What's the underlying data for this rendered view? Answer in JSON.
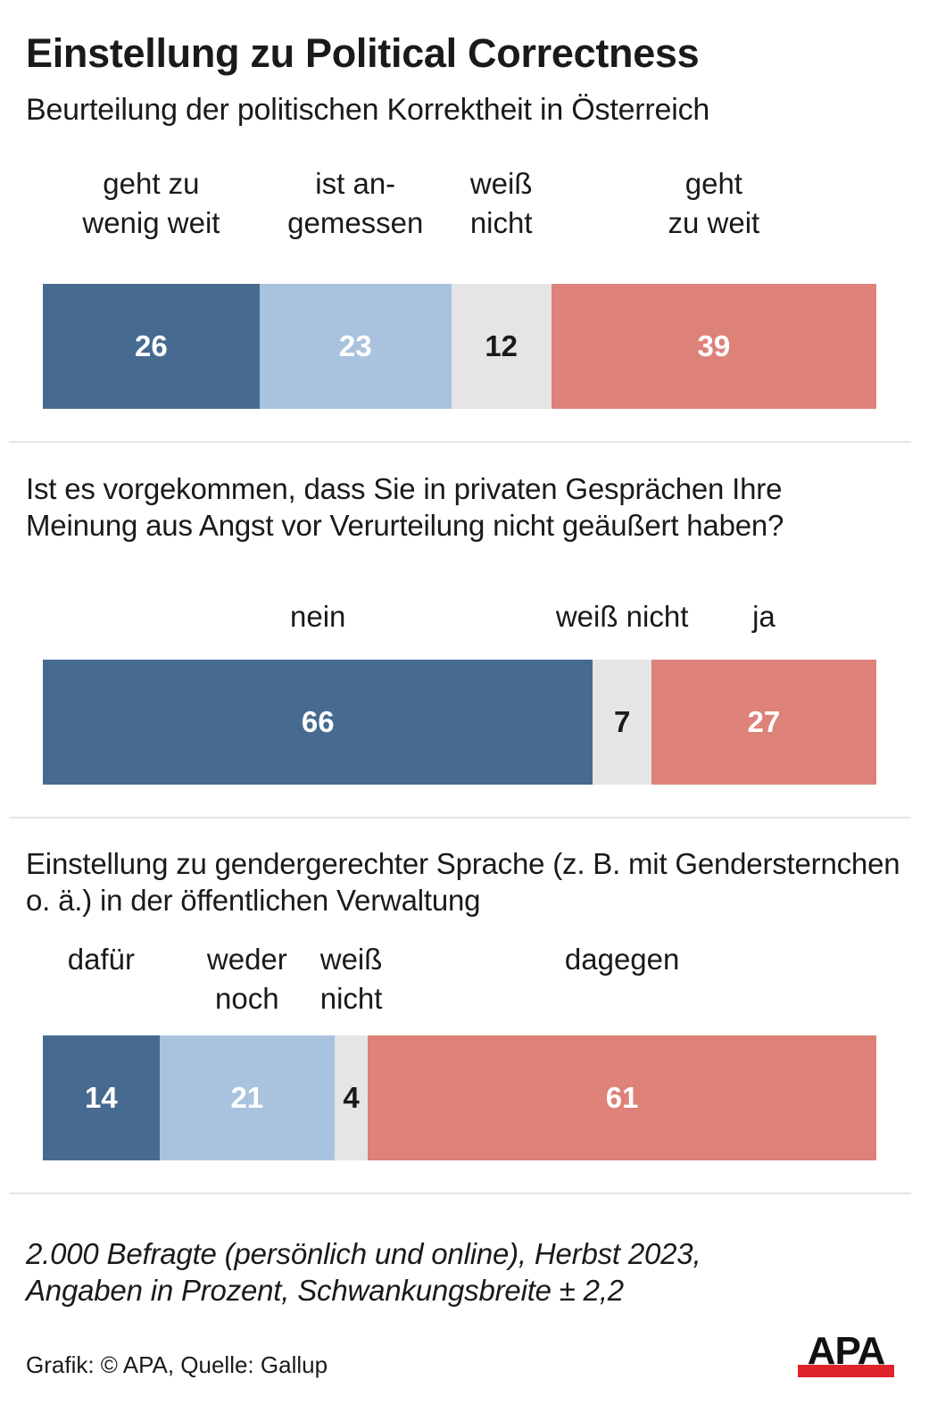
{
  "header": {
    "title": "Einstellung zu Political Correctness",
    "subtitle": "Beurteilung der politischen Korrektheit in Österreich"
  },
  "colors": {
    "dark_blue": "#476a91",
    "light_blue": "#a9c3de",
    "grey": "#e5e5e5",
    "red": "#de8178",
    "text_on_dark": "#ffffff",
    "text_on_grey": "#1a1a1a",
    "logo_red": "#e0242c"
  },
  "chart_data": [
    {
      "type": "bar",
      "orientation": "horizontal-stacked-100",
      "title": "Beurteilung der politischen Korrektheit in Österreich",
      "unit": "Prozent",
      "categories": [
        "geht zu\nwenig weit",
        "ist an-\ngemessen",
        "weiß\nnicht",
        "geht\nzu weit"
      ],
      "values": [
        26,
        23,
        12,
        39
      ],
      "segment_colors": [
        "dark_blue",
        "light_blue",
        "grey",
        "red"
      ]
    },
    {
      "type": "bar",
      "orientation": "horizontal-stacked-100",
      "title": "Ist es vorgekommen, dass Sie in privaten Gesprächen Ihre Meinung aus Angst vor Verurteilung nicht geäußert haben?",
      "unit": "Prozent",
      "categories": [
        "nein",
        "weiß nicht",
        "ja"
      ],
      "values": [
        66,
        7,
        27
      ],
      "segment_colors": [
        "dark_blue",
        "grey",
        "red"
      ]
    },
    {
      "type": "bar",
      "orientation": "horizontal-stacked-100",
      "title": "Einstellung zu gendergerechter Sprache (z. B. mit Gendersternchen o. ä.) in der öffentlichen Verwaltung",
      "unit": "Prozent",
      "categories": [
        "dafür",
        "weder\nnoch",
        "weiß\nnicht",
        "dagegen"
      ],
      "values": [
        14,
        21,
        4,
        61
      ],
      "segment_colors": [
        "dark_blue",
        "light_blue",
        "grey",
        "red"
      ]
    }
  ],
  "sections": [
    {
      "question": ""
    },
    {
      "question": "Ist es vorgekommen, dass Sie in privaten Gesprächen Ihre Meinung aus Angst vor Verurteilung nicht geäußert haben?"
    },
    {
      "question": "Einstellung zu gendergerechter Sprache (z. B. mit Gendersternchen o. ä.) in der öffentlichen Verwaltung"
    }
  ],
  "footer": {
    "note_line1": "2.000 Befragte (persönlich und online), Herbst 2023,",
    "note_line2": "Angaben in Prozent, Schwankungsbreite ± 2,2",
    "credit": "Grafik: © APA, Quelle: Gallup",
    "logo_text": "APA"
  }
}
